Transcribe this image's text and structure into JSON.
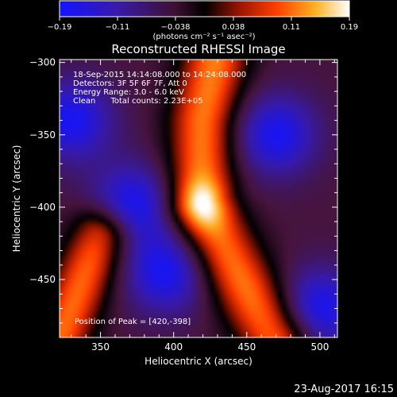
{
  "colorbar": {
    "tick_labels": [
      "−0.19",
      "−0.11",
      "−0.038",
      "0.038",
      "0.11",
      "0.19"
    ],
    "unit_label": "(photons cm⁻² s⁻¹ asec⁻²)",
    "min": -0.19,
    "max": 0.19
  },
  "chart_data": {
    "type": "heatmap",
    "title": "Reconstructed RHESSI Image",
    "xlabel": "Heliocentric X (arcsec)",
    "ylabel": "Heliocentric Y (arcsec)",
    "xlim": [
      322,
      512
    ],
    "ylim": [
      -490,
      -298
    ],
    "x_ticks": [
      350,
      400,
      450,
      500
    ],
    "y_ticks": [
      -300,
      -350,
      -400,
      -450
    ],
    "x_tick_labels": [
      "350",
      "400",
      "450",
      "500"
    ],
    "y_tick_labels": [
      "−300",
      "−350",
      "−400",
      "−450"
    ],
    "annotations": [
      "18-Sep-2015 14:14:08.000 to 14:24:08.000",
      "Detectors: 3F 5F 6F 7F, Att 0",
      "Energy Range: 3.0 - 6.0 keV",
      "Clean      Total counts: 2.23E+05"
    ],
    "peak_label": "Position of Peak = [420,-398]",
    "peak": [
      420,
      -398
    ],
    "peak_value": 0.19,
    "ridge": [
      [
        428,
        -300
      ],
      [
        420,
        -340
      ],
      [
        418,
        -398
      ],
      [
        440,
        -440
      ],
      [
        470,
        -490
      ]
    ],
    "ridge_secondary": [
      [
        350,
        -420
      ],
      [
        330,
        -470
      ],
      [
        322,
        -490
      ]
    ],
    "troughs": [
      [
        330,
        -340
      ],
      [
        395,
        -445
      ],
      [
        470,
        -350
      ],
      [
        372,
        -398
      ],
      [
        500,
        -470
      ]
    ]
  },
  "footer": {
    "timestamp": "23-Aug-2017 16:15"
  }
}
